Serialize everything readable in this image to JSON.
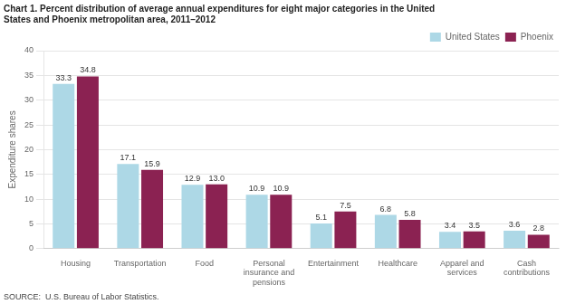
{
  "chart_data": {
    "type": "bar",
    "title": [
      "Chart 1. Percent distribution of average annual expenditures for eight major categories in the United",
      "States and Phoenix metropolitan area, 2011–2012"
    ],
    "ylabel": "Expenditure shares",
    "source": "SOURCE:  U.S. Bureau of Labor Statistics.",
    "categories": [
      "Housing",
      "Transportation",
      "Food",
      "Personal\ninsurance and\npensions",
      "Entertainment",
      "Healthcare",
      "Apparel and\nservices",
      "Cash\ncontributions"
    ],
    "series": [
      {
        "name": "United States",
        "color": "#ADD8E6",
        "values": [
          33.3,
          17.1,
          12.9,
          10.9,
          5.1,
          6.8,
          3.4,
          3.6
        ],
        "value_labels": [
          "33.3",
          "17.1",
          "12.9",
          "10.9",
          "5.1",
          "6.8",
          "3.4",
          "3.6"
        ]
      },
      {
        "name": "Phoenix",
        "color": "#8B2252",
        "values": [
          34.8,
          15.9,
          13.0,
          10.9,
          7.5,
          5.8,
          3.5,
          2.8
        ],
        "value_labels": [
          "34.8",
          "15.9",
          "13.0",
          "10.9",
          "7.5",
          "5.8",
          "3.5",
          "2.8"
        ]
      }
    ],
    "ylim": [
      0,
      40
    ],
    "yticks": [
      0,
      5,
      10,
      15,
      20,
      25,
      30,
      35,
      40
    ],
    "grid": true,
    "legend": "upper right",
    "data_labels": true
  }
}
